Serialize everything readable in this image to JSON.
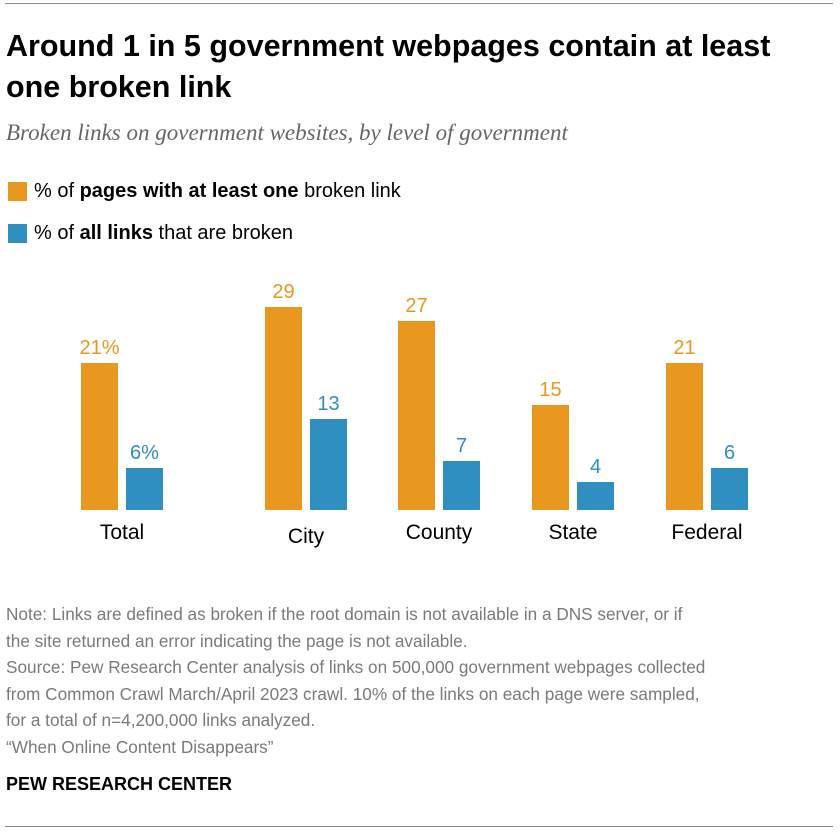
{
  "header": {
    "title": "Around 1 in 5 government webpages contain at least one broken link",
    "subtitle": "Broken links on government websites, by level of government"
  },
  "legend": [
    {
      "prefix": "% of ",
      "bold": "pages with at least one",
      "suffix": " broken link",
      "color": "#E8981E"
    },
    {
      "prefix": "% of ",
      "bold": "all links",
      "suffix": " that are broken",
      "color": "#2F8FC0"
    }
  ],
  "chart_data": {
    "type": "bar",
    "categories": [
      "Total",
      "City",
      "County",
      "State",
      "Federal"
    ],
    "series": [
      {
        "name": "% of pages with at least one broken link",
        "values": [
          21,
          29,
          27,
          15,
          21
        ],
        "labels": [
          "21%",
          "29",
          "27",
          "15",
          "21"
        ],
        "color": "#E8981E"
      },
      {
        "name": "% of all links that are broken",
        "values": [
          6,
          13,
          7,
          4,
          6
        ],
        "labels": [
          "6%",
          "13",
          "7",
          "4",
          "6"
        ],
        "color": "#2F8FC0"
      }
    ],
    "ylim": [
      0,
      29
    ],
    "grid": false,
    "legend_position": "top-left"
  },
  "notes": {
    "lines": [
      "Note: Links are defined as broken if the root domain is not available in a DNS server, or if",
      "the site returned an error indicating the page is not available.",
      "Source: Pew Research Center analysis of links on 500,000 government webpages collected",
      "from Common Crawl March/April 2023 crawl. 10% of the links on each page were sampled,",
      "for a total of n=4,200,000 links analyzed.",
      "“When Online Content Disappears”"
    ]
  },
  "footer": {
    "brand": "PEW RESEARCH CENTER"
  }
}
